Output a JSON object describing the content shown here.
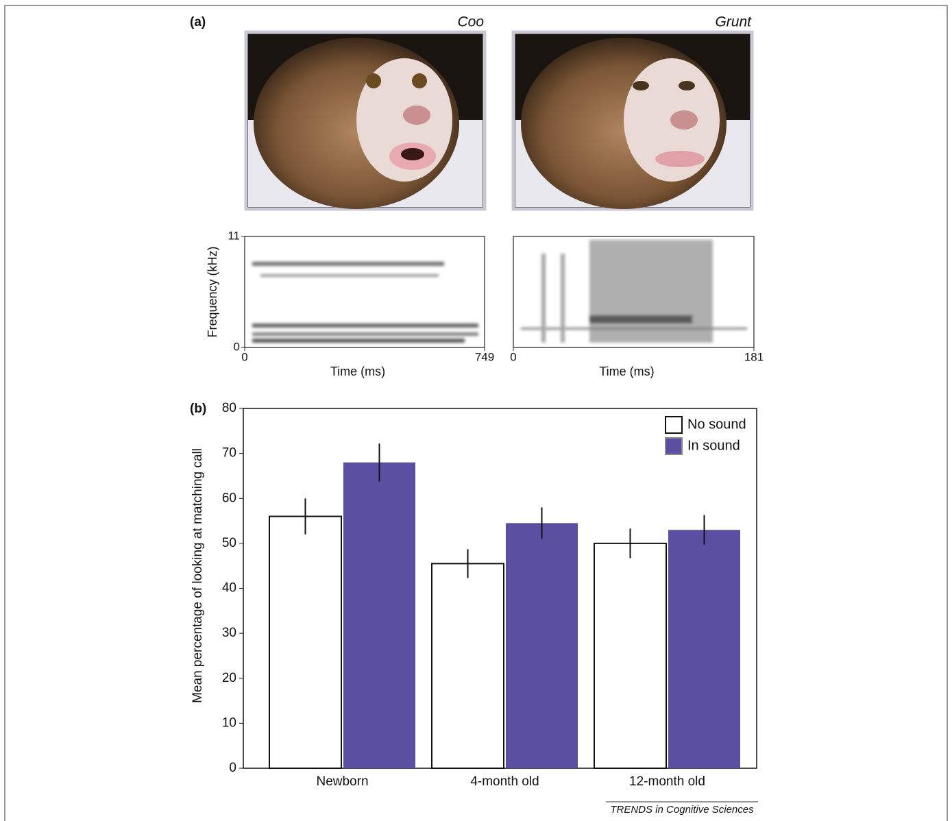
{
  "labels": {
    "a": "(a)",
    "b": "(b)"
  },
  "source": "TRENDS in Cognitive Sciences",
  "chart_data": [
    {
      "type": "spectrogram",
      "title": "Coo",
      "xlabel": "Time (ms)",
      "ylabel": "Frequency (kHz)",
      "xlim": [
        0,
        749
      ],
      "xticks": [
        0,
        749
      ],
      "ylim": [
        0,
        11
      ],
      "yticks": [
        0,
        11
      ]
    },
    {
      "type": "spectrogram",
      "title": "Grunt",
      "xlabel": "Time (ms)",
      "xlim": [
        0,
        181
      ],
      "xticks": [
        0,
        181
      ]
    },
    {
      "type": "bar",
      "ylabel": "Mean percentage of looking at matching call",
      "categories": [
        "Newborn",
        "4-month old",
        "12-month old"
      ],
      "series": [
        {
          "name": "No sound",
          "color": "#ffffff",
          "values": [
            56,
            45.5,
            50
          ],
          "errors": [
            4,
            3.2,
            3.3
          ]
        },
        {
          "name": "In sound",
          "color": "#5a4fa0",
          "values": [
            68,
            54.5,
            53
          ],
          "errors": [
            4.2,
            3.5,
            3.3
          ]
        }
      ],
      "ylim": [
        0,
        80
      ],
      "yticks": [
        0,
        10,
        20,
        30,
        40,
        50,
        60,
        70,
        80
      ],
      "legend": "upper right"
    }
  ]
}
